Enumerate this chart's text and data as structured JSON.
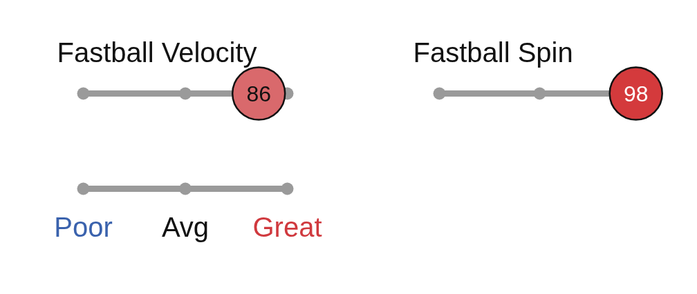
{
  "chart_data": {
    "type": "other",
    "categories": [
      "Fastball Velocity",
      "Fastball Spin"
    ],
    "values": [
      86,
      98
    ],
    "colors": [
      "#d9696c",
      "#d43a3c"
    ],
    "annotations": [
      "Poor",
      "Avg",
      "Great"
    ],
    "data_labels": true
  }
}
